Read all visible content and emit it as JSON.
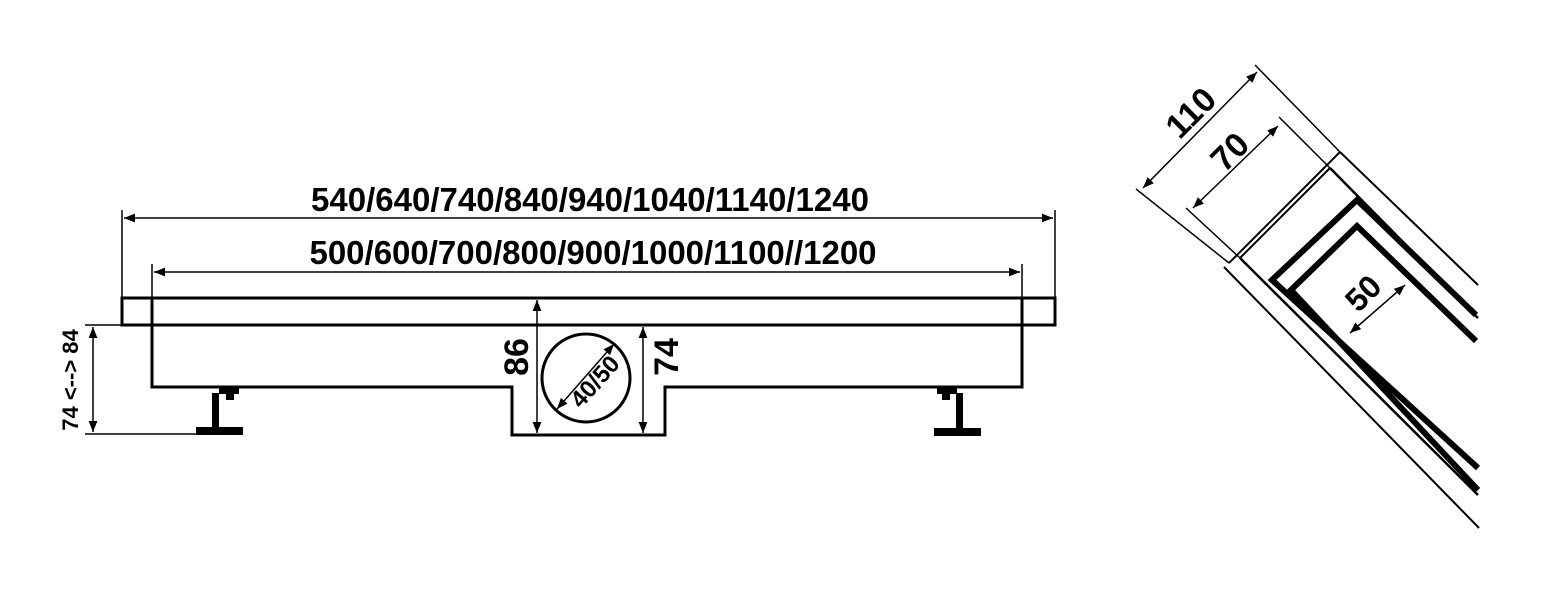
{
  "front_view": {
    "outer_length_label": "540/640/740/840/940/1040/1140/1240",
    "inner_length_label": "500/600/700/800/900/1000/1100//1200",
    "height_label": "86",
    "outlet_height_label": "74",
    "outlet_diameter_label": "40/50",
    "adjustable_height_label": "74 <--> 84"
  },
  "side_view": {
    "total_width_label": "110",
    "channel_width_label": "70",
    "grate_width_label": "50"
  },
  "colors": {
    "line": "#000000",
    "background": "#ffffff"
  }
}
